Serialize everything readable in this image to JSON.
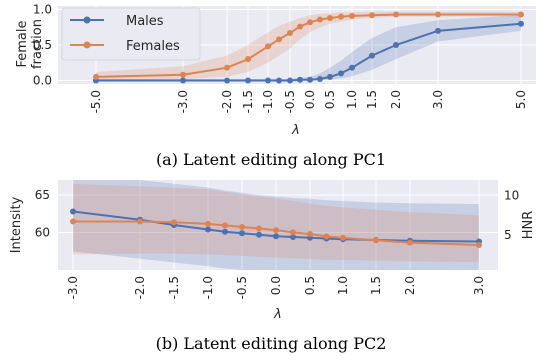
{
  "chart_data": [
    {
      "type": "line",
      "caption": "(a) Latent editing along PC1",
      "ylabel": "Female\nfraction",
      "xlabel": "λ",
      "x_ticks": [
        -5.0,
        -3.0,
        -2.0,
        -1.5,
        -1.0,
        -0.5,
        0.0,
        0.5,
        1.0,
        1.5,
        2.0,
        3.0,
        5.0
      ],
      "x_tick_labels": [
        "-5.0",
        "-3.0",
        "-2.0",
        "-1.5",
        "-1.0",
        "-0.5",
        "0.0",
        "0.5",
        "1.0",
        "1.5",
        "2.0",
        "3.0",
        "5.0"
      ],
      "y_ticks": [
        0.0,
        0.5,
        1.0
      ],
      "y_tick_labels": [
        "0.0",
        "0.5",
        "1.0"
      ],
      "ylim": [
        -0.05,
        1.05
      ],
      "x_scale": "ordinal-tick-positions",
      "legend": "top-left",
      "series": [
        {
          "name": "Males",
          "color": "#4c72b0",
          "x": [
            -5.0,
            -3.0,
            -2.0,
            -1.5,
            -1.0,
            -0.75,
            -0.5,
            -0.25,
            0.0,
            0.25,
            0.5,
            0.75,
            1.0,
            1.5,
            2.0,
            3.0,
            5.0
          ],
          "values": [
            0.0,
            0.0,
            0.0,
            0.0,
            0.0,
            0.0,
            0.0,
            0.01,
            0.01,
            0.02,
            0.05,
            0.1,
            0.18,
            0.35,
            0.5,
            0.7,
            0.8
          ],
          "lower": [
            0.0,
            0.0,
            0.0,
            0.0,
            0.0,
            0.0,
            0.0,
            0.0,
            0.0,
            0.0,
            0.01,
            0.03,
            0.06,
            0.15,
            0.3,
            0.55,
            0.7
          ],
          "upper": [
            0.02,
            0.02,
            0.02,
            0.02,
            0.02,
            0.02,
            0.02,
            0.04,
            0.05,
            0.1,
            0.18,
            0.28,
            0.4,
            0.6,
            0.75,
            0.85,
            0.92
          ]
        },
        {
          "name": "Females",
          "color": "#dd8452",
          "x": [
            -5.0,
            -3.0,
            -2.0,
            -1.5,
            -1.0,
            -0.75,
            -0.5,
            -0.25,
            0.0,
            0.25,
            0.5,
            0.75,
            1.0,
            1.5,
            2.0,
            3.0,
            5.0
          ],
          "values": [
            0.05,
            0.08,
            0.18,
            0.3,
            0.48,
            0.58,
            0.67,
            0.76,
            0.82,
            0.86,
            0.88,
            0.9,
            0.91,
            0.92,
            0.93,
            0.93,
            0.93
          ],
          "lower": [
            0.0,
            0.02,
            0.05,
            0.12,
            0.25,
            0.35,
            0.45,
            0.58,
            0.68,
            0.75,
            0.8,
            0.83,
            0.86,
            0.88,
            0.9,
            0.9,
            0.9
          ],
          "upper": [
            0.12,
            0.2,
            0.35,
            0.5,
            0.68,
            0.77,
            0.83,
            0.88,
            0.92,
            0.94,
            0.95,
            0.96,
            0.96,
            0.97,
            0.97,
            0.97,
            0.97
          ]
        }
      ]
    },
    {
      "type": "line",
      "caption": "(b) Latent editing along PC2",
      "ylabel_left": "Intensity",
      "ylabel_right": "HNR",
      "xlabel": "λ",
      "x_ticks": [
        -3.0,
        -2.0,
        -1.5,
        -1.0,
        -0.5,
        0.0,
        0.5,
        1.0,
        1.5,
        2.0,
        3.0
      ],
      "x_tick_labels": [
        "-3.0",
        "-2.0",
        "-1.5",
        "-1.0",
        "-0.5",
        "0.0",
        "0.5",
        "1.0",
        "1.5",
        "2.0",
        "3.0"
      ],
      "y_ticks_left": [
        60,
        65
      ],
      "y_tick_labels_left": [
        "60",
        "65"
      ],
      "ylim_left": [
        55,
        67
      ],
      "y_ticks_right": [
        5,
        10
      ],
      "y_tick_labels_right": [
        "5",
        "10"
      ],
      "ylim_right": [
        0.5,
        12
      ],
      "left_axis_color": "#4c72b0",
      "right_axis_color": "#dd8452",
      "x_scale": "ordinal-tick-positions",
      "series": [
        {
          "axis": "left",
          "color": "#4c72b0",
          "x": [
            -3.0,
            -2.0,
            -1.5,
            -1.0,
            -0.75,
            -0.5,
            -0.25,
            0.0,
            0.25,
            0.5,
            0.75,
            1.0,
            1.5,
            2.0,
            3.0
          ],
          "values": [
            62.8,
            61.7,
            61.0,
            60.4,
            60.1,
            59.9,
            59.7,
            59.5,
            59.4,
            59.3,
            59.2,
            59.1,
            59.0,
            58.9,
            58.8
          ],
          "lower": [
            57.5,
            56.5,
            56.0,
            55.5,
            55.2,
            55.0,
            54.8,
            54.6,
            54.5,
            54.4,
            54.3,
            54.2,
            54.0,
            53.9,
            53.8
          ],
          "upper": [
            68.0,
            67.0,
            66.5,
            66.0,
            65.6,
            65.3,
            65.0,
            64.8,
            64.6,
            64.5,
            64.3,
            64.2,
            64.0,
            63.9,
            63.8
          ]
        },
        {
          "axis": "right",
          "color": "#dd8452",
          "x": [
            -3.0,
            -2.0,
            -1.5,
            -1.0,
            -0.75,
            -0.5,
            -0.25,
            0.0,
            0.25,
            0.5,
            0.75,
            1.0,
            1.5,
            2.0,
            3.0
          ],
          "values": [
            6.7,
            6.7,
            6.6,
            6.4,
            6.2,
            6.0,
            5.8,
            5.6,
            5.3,
            5.1,
            4.8,
            4.6,
            4.3,
            4.0,
            3.7
          ],
          "lower": [
            2.5,
            2.6,
            2.6,
            2.5,
            2.4,
            2.3,
            2.2,
            2.1,
            2.0,
            1.9,
            1.8,
            1.8,
            1.7,
            1.6,
            1.5
          ],
          "upper": [
            11.5,
            11.2,
            11.0,
            10.8,
            10.5,
            10.2,
            9.9,
            9.6,
            9.3,
            9.0,
            8.7,
            8.5,
            8.2,
            7.9,
            7.5
          ]
        }
      ]
    }
  ]
}
